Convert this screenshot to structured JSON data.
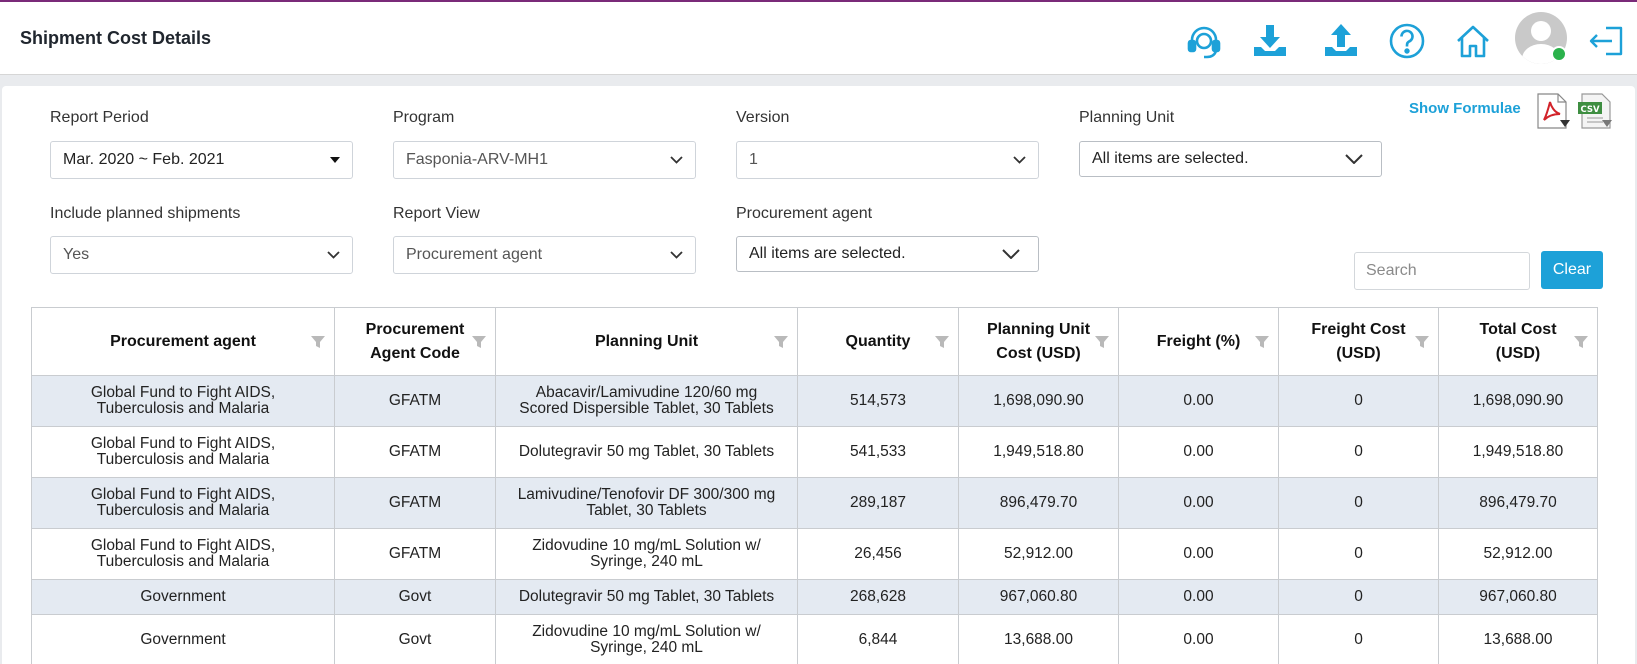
{
  "header": {
    "title": "Shipment Cost Details"
  },
  "filters": {
    "report_period": {
      "label": "Report Period",
      "value": "Mar. 2020 ~ Feb. 2021"
    },
    "program": {
      "label": "Program",
      "value": "Fasponia-ARV-MH1"
    },
    "version": {
      "label": "Version",
      "value": "1"
    },
    "planning_unit": {
      "label": "Planning Unit",
      "value": "All items are selected."
    },
    "include_planned": {
      "label": "Include planned shipments",
      "value": "Yes"
    },
    "report_view": {
      "label": "Report View",
      "value": "Procurement agent"
    },
    "procurement_agent": {
      "label": "Procurement agent",
      "value": "All items are selected."
    }
  },
  "toolbar": {
    "show_formulae": "Show Formulae",
    "search_placeholder": "Search",
    "clear_label": "Clear",
    "csv_text": "CSV"
  },
  "colors": {
    "accent": "#1da1d8",
    "row_alt": "#e4eaf2",
    "online": "#2bb24c"
  },
  "table": {
    "columns": [
      {
        "l1": "Procurement agent",
        "l2": ""
      },
      {
        "l1": "Procurement",
        "l2": "Agent Code"
      },
      {
        "l1": "Planning Unit",
        "l2": ""
      },
      {
        "l1": "Quantity",
        "l2": ""
      },
      {
        "l1": "Planning Unit",
        "l2": "Cost (USD)"
      },
      {
        "l1": "Freight (%)",
        "l2": ""
      },
      {
        "l1": "Freight Cost",
        "l2": "(USD)"
      },
      {
        "l1": "Total Cost (USD)",
        "l2": ""
      }
    ],
    "rows": [
      {
        "agent": [
          "Global Fund to Fight AIDS,",
          "Tuberculosis and Malaria"
        ],
        "code": "GFATM",
        "unit": [
          "Abacavir/Lamivudine 120/60 mg",
          "Scored Dispersible Tablet, 30 Tablets"
        ],
        "qty": "514,573",
        "pu_cost": "1,698,090.90",
        "freight_pct": "0.00",
        "freight_cost": "0",
        "total": "1,698,090.90"
      },
      {
        "agent": [
          "Global Fund to Fight AIDS,",
          "Tuberculosis and Malaria"
        ],
        "code": "GFATM",
        "unit": [
          "Dolutegravir 50 mg Tablet, 30 Tablets",
          ""
        ],
        "qty": "541,533",
        "pu_cost": "1,949,518.80",
        "freight_pct": "0.00",
        "freight_cost": "0",
        "total": "1,949,518.80"
      },
      {
        "agent": [
          "Global Fund to Fight AIDS,",
          "Tuberculosis and Malaria"
        ],
        "code": "GFATM",
        "unit": [
          "Lamivudine/Tenofovir DF 300/300 mg",
          "Tablet, 30 Tablets"
        ],
        "qty": "289,187",
        "pu_cost": "896,479.70",
        "freight_pct": "0.00",
        "freight_cost": "0",
        "total": "896,479.70"
      },
      {
        "agent": [
          "Global Fund to Fight AIDS,",
          "Tuberculosis and Malaria"
        ],
        "code": "GFATM",
        "unit": [
          "Zidovudine 10 mg/mL Solution w/",
          "Syringe, 240 mL"
        ],
        "qty": "26,456",
        "pu_cost": "52,912.00",
        "freight_pct": "0.00",
        "freight_cost": "0",
        "total": "52,912.00"
      },
      {
        "agent": [
          "Government",
          ""
        ],
        "code": "Govt",
        "unit": [
          "Dolutegravir 50 mg Tablet, 30 Tablets",
          ""
        ],
        "qty": "268,628",
        "pu_cost": "967,060.80",
        "freight_pct": "0.00",
        "freight_cost": "0",
        "total": "967,060.80"
      },
      {
        "agent": [
          "Government",
          ""
        ],
        "code": "Govt",
        "unit": [
          "Zidovudine 10 mg/mL Solution w/",
          "Syringe, 240 mL"
        ],
        "qty": "6,844",
        "pu_cost": "13,688.00",
        "freight_pct": "0.00",
        "freight_cost": "0",
        "total": "13,688.00"
      }
    ]
  }
}
